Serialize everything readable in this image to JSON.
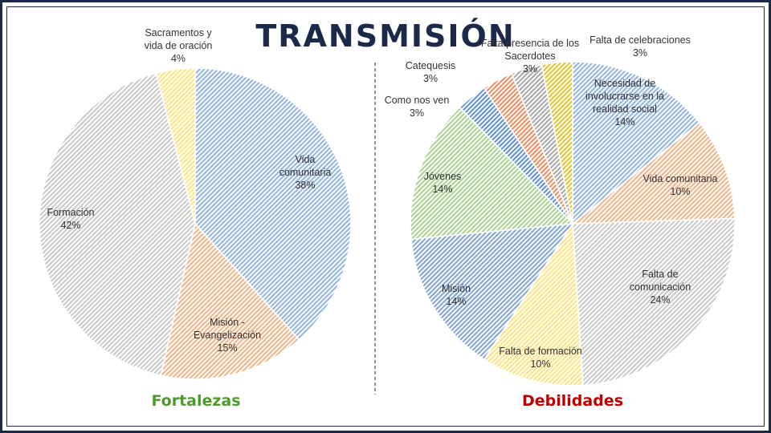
{
  "title": "TRANSMISIÓN",
  "chart_data": [
    {
      "type": "pie",
      "title": "Fortalezas",
      "title_color": "#4e9a2c",
      "slices": [
        {
          "label": "Vida comunitaria",
          "lines": [
            "Vida",
            "comunitaria"
          ],
          "value": 38,
          "pct": "38%",
          "color": "#8fb4e3"
        },
        {
          "label": "Misión - Evangelización",
          "lines": [
            "Misión -",
            "Evangelización"
          ],
          "value": 15,
          "pct": "15%",
          "color": "#f4b183"
        },
        {
          "label": "Formación",
          "lines": [
            "Formación"
          ],
          "value": 42,
          "pct": "42%",
          "color": "#c9c9c9"
        },
        {
          "label": "Sacramentos y vida de oración",
          "lines": [
            "Sacramentos y",
            "vida de oración"
          ],
          "value": 4,
          "pct": "4%",
          "color": "#ffe37a"
        }
      ]
    },
    {
      "type": "pie",
      "title": "Debilidades",
      "title_color": "#c00000",
      "slices": [
        {
          "label": "Necesidad de involucrarse en la realidad social",
          "lines": [
            "Necesidad de",
            "involucrarse en la",
            "realidad social"
          ],
          "value": 14,
          "pct": "14%",
          "color": "#8fb4e3"
        },
        {
          "label": "Vida comunitaria",
          "lines": [
            "Vida comunitaria"
          ],
          "value": 10,
          "pct": "10%",
          "color": "#f4b183"
        },
        {
          "label": "Falta de comunicación",
          "lines": [
            "Falta de",
            "comunicación"
          ],
          "value": 24,
          "pct": "24%",
          "color": "#c9c9c9"
        },
        {
          "label": "Falta de formación",
          "lines": [
            "Falta de formación"
          ],
          "value": 10,
          "pct": "10%",
          "color": "#ffe37a"
        },
        {
          "label": "Misión",
          "lines": [
            "Misión"
          ],
          "value": 14,
          "pct": "14%",
          "color": "#7fa3d9"
        },
        {
          "label": "Jóvenes",
          "lines": [
            "Jóvenes"
          ],
          "value": 14,
          "pct": "14%",
          "color": "#a9d18e"
        },
        {
          "label": "Como nos ven",
          "lines": [
            "Como nos ven"
          ],
          "value": 3,
          "pct": "3%",
          "color": "#5b8fd6"
        },
        {
          "label": "Catequesis",
          "lines": [
            "Catequesis"
          ],
          "value": 3,
          "pct": "3%",
          "color": "#f08a5d"
        },
        {
          "label": "Falta presencia de los Sacerdotes",
          "lines": [
            "Falta presencia de los",
            "Sacerdotes"
          ],
          "value": 3,
          "pct": "3%",
          "color": "#a6a6a6"
        },
        {
          "label": "Falta de celebraciones",
          "lines": [
            "Falta de celebraciones"
          ],
          "value": 3,
          "pct": "3%",
          "color": "#e6c229"
        }
      ]
    }
  ]
}
